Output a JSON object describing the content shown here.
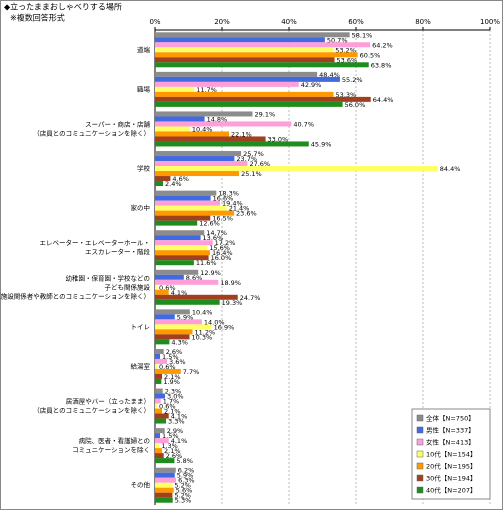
{
  "chart_data": {
    "type": "hbar",
    "title": "◆立ったままおしゃべりする場所",
    "subtitle": "※複数回答形式",
    "categories": [
      "道端",
      "職場",
      "スーパー・商店・店舗\n（店員とのコミュニケーションを除く）",
      "学校",
      "家の中",
      "エレベーター・エレベーターホール・\nエスカレーター・階段",
      "幼稚園・保育園・学校などの\n子ども関係施設\n（施設関係者や教師とのコミュニケーションを除く）",
      "トイレ",
      "給湯室",
      "居酒屋やバー（立ったまま）\n（店員とのコミュニケーションを除く）",
      "病院、医者・看護婦との\nコミュニケーションを除く",
      "その他"
    ],
    "series": [
      {
        "name": "全体【N=750】",
        "color": "#8c8c8c",
        "values": [
          58.1,
          48.4,
          29.1,
          25.7,
          18.3,
          14.7,
          12.9,
          10.4,
          2.6,
          2.3,
          2.9,
          6.2
        ],
        "value_labels": [
          "58.1%",
          "48.4%",
          "29.1%",
          "25.7%",
          "18.3%",
          "14.7%",
          "12.9%",
          "10.4%",
          "2.6%",
          "2.3%",
          "2.9%",
          "6.2%"
        ]
      },
      {
        "name": "男性【N=337】",
        "color": "#4169e1",
        "values": [
          50.7,
          55.2,
          14.8,
          23.7,
          16.6,
          13.6,
          8.6,
          5.9,
          1.5,
          3.0,
          1.5,
          5.9
        ],
        "value_labels": [
          "50.7%",
          "55.2%",
          "14.8%",
          "23.7%",
          "16.6%",
          "13.6%",
          "8.6%",
          "5.9%",
          "1.5%",
          "3.0%",
          "1.5%",
          "5.9%"
        ]
      },
      {
        "name": "女性【N=413】",
        "color": "#ff9ed8",
        "values": [
          64.2,
          42.9,
          40.7,
          27.6,
          19.4,
          17.2,
          18.9,
          14.0,
          3.6,
          1.7,
          4.1,
          6.3
        ],
        "value_labels": [
          "64.2%",
          "42.9%",
          "40.7%",
          "27.6%",
          "19.4%",
          "17.2%",
          "18.9%",
          "14.0%",
          "3.6%",
          "1.7%",
          "4.1%",
          "6.3%"
        ]
      },
      {
        "name": "10代【N=154】",
        "color": "#ffff66",
        "values": [
          53.2,
          11.7,
          10.4,
          84.4,
          21.4,
          15.6,
          0.6,
          16.9,
          0.6,
          0.6,
          1.3,
          5.2
        ],
        "value_labels": [
          "53.2%",
          "11.7%",
          "10.4%",
          "84.4%",
          "21.4%",
          "15.6%",
          "0.6%",
          "16.9%",
          "0.6%",
          "0.6%",
          "1.3%",
          "5.2%"
        ]
      },
      {
        "name": "20代【N=195】",
        "color": "#ff9900",
        "values": [
          60.5,
          53.3,
          22.1,
          25.1,
          23.6,
          16.4,
          4.1,
          11.2,
          7.7,
          2.1,
          2.1,
          5.6
        ],
        "value_labels": [
          "60.5%",
          "53.3%",
          "22.1%",
          "25.1%",
          "23.6%",
          "16.4%",
          "4.1%",
          "11.2%",
          "7.7%",
          "2.1%",
          "2.1%",
          "5.6%"
        ]
      },
      {
        "name": "30代【N=194】",
        "color": "#a0401e",
        "values": [
          53.6,
          64.4,
          33.0,
          4.6,
          16.5,
          16.0,
          24.7,
          10.3,
          2.1,
          4.1,
          2.6,
          5.2
        ],
        "value_labels": [
          "53.6%",
          "64.4%",
          "33.0%",
          "4.6%",
          "16.5%",
          "16.0%",
          "24.7%",
          "10.3%",
          "2.1%",
          "4.1%",
          "2.6%",
          "5.2%"
        ]
      },
      {
        "name": "40代【N=207】",
        "color": "#1e8c1e",
        "values": [
          63.8,
          56.0,
          45.9,
          2.4,
          12.6,
          11.6,
          19.3,
          4.3,
          1.9,
          3.3,
          5.8,
          5.3
        ],
        "value_labels": [
          "63.8%",
          "56.0%",
          "45.9%",
          "2.4%",
          "12.6%",
          "11.6%",
          "19.3%",
          "4.3%",
          "1.9%",
          "3.3%",
          "5.8%",
          "5.3%"
        ]
      }
    ],
    "xlim": [
      0,
      100
    ],
    "xticks": [
      {
        "value": 0,
        "label": "0%"
      },
      {
        "value": 20,
        "label": "20%"
      },
      {
        "value": 40,
        "label": "40%"
      },
      {
        "value": 60,
        "label": "60%"
      },
      {
        "value": 80,
        "label": "80%"
      },
      {
        "value": 100,
        "label": "100%"
      }
    ],
    "grid": true,
    "legend": "lower right"
  }
}
